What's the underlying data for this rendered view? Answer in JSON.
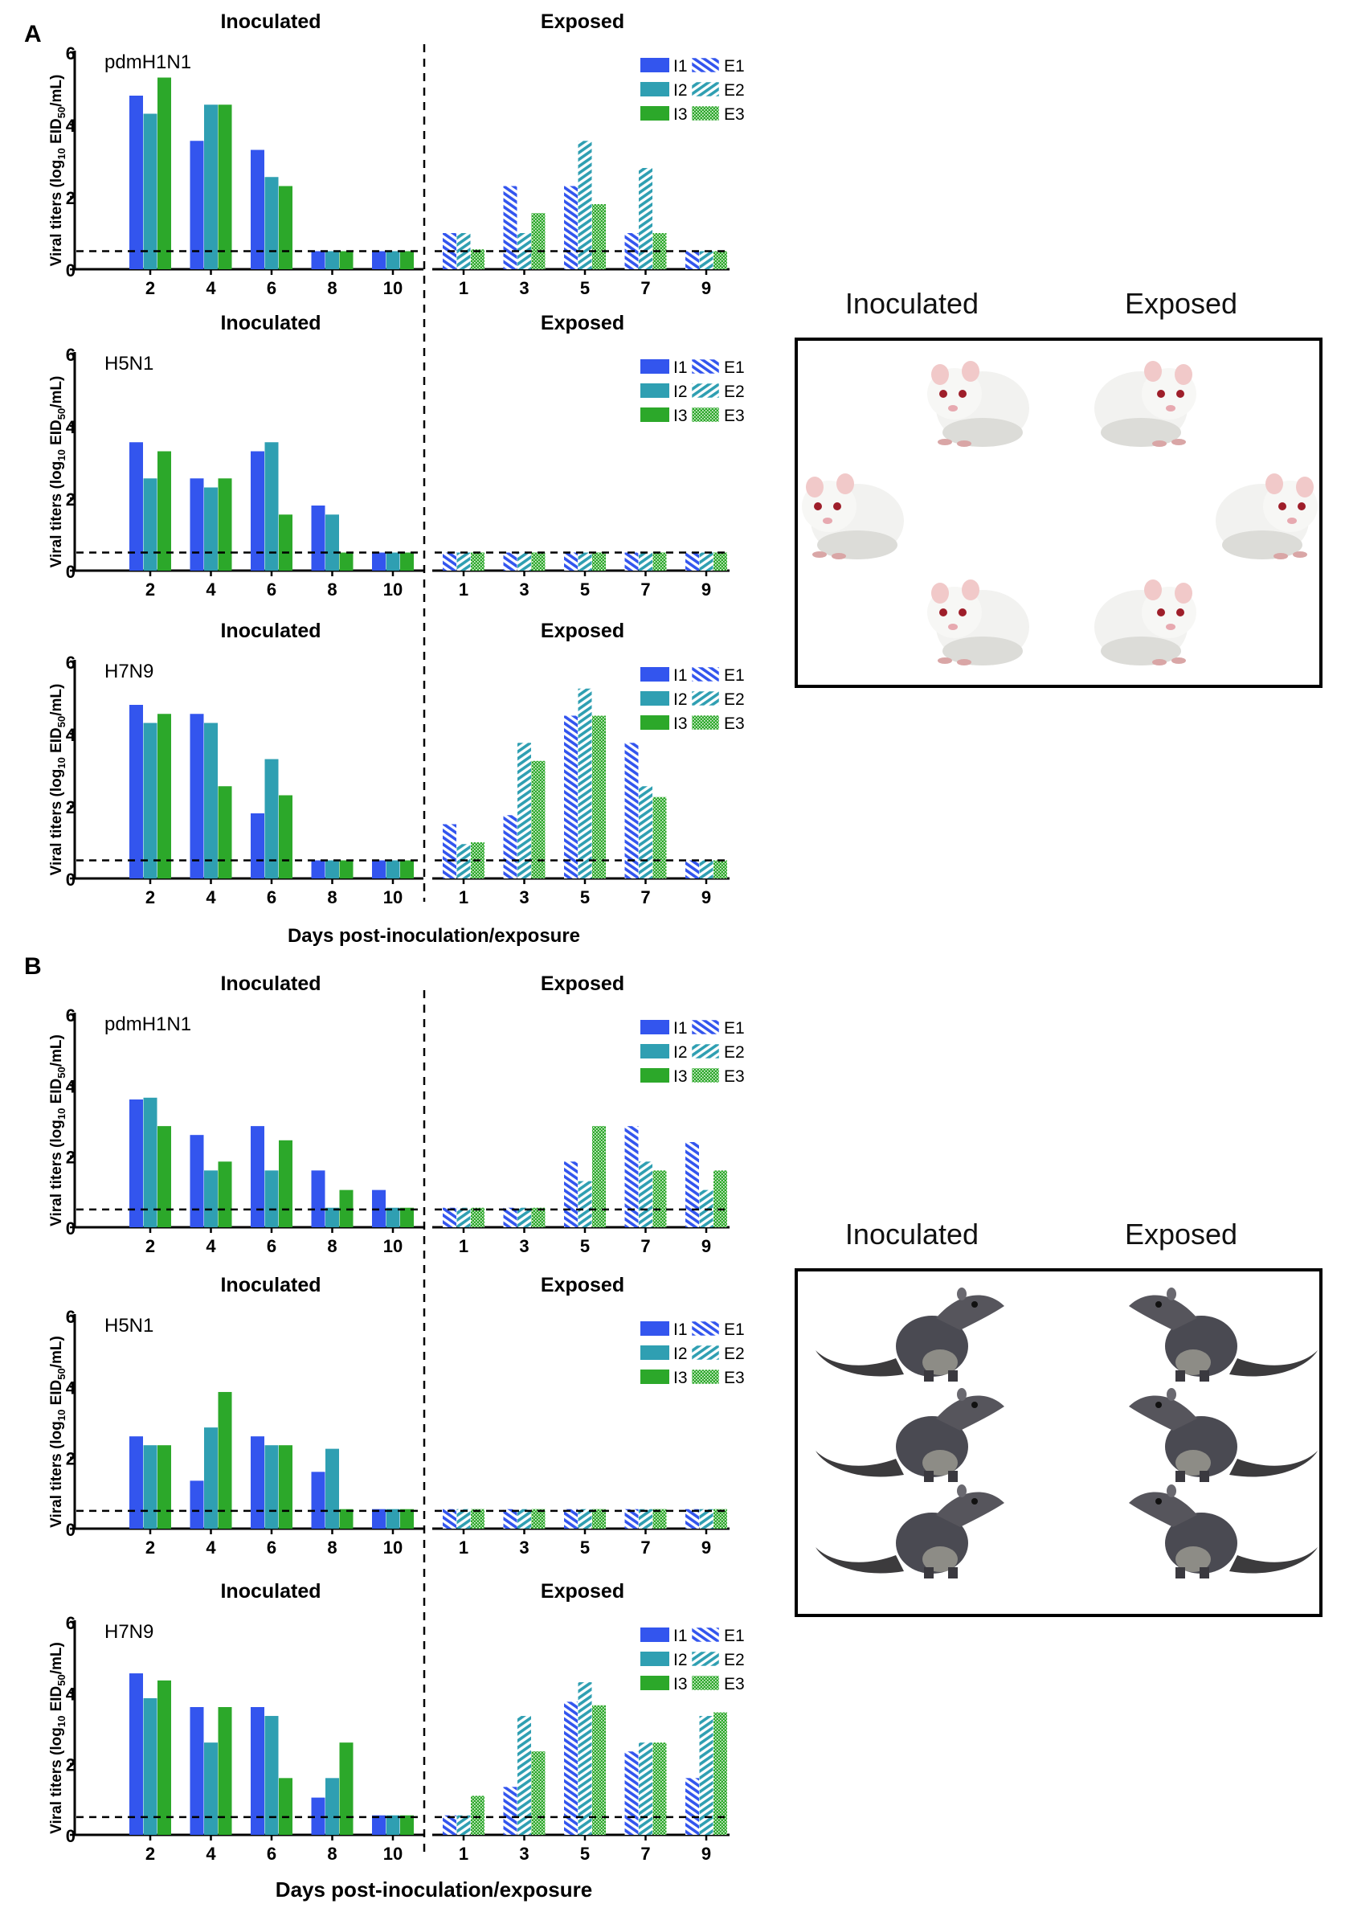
{
  "figure": {
    "panel_a_letter": "A",
    "panel_b_letter": "B",
    "xlabel": "Days post-inoculation/exposure",
    "ylabel_main": "Viral titers (log",
    "ylabel_sub1": "10",
    "ylabel_mid": " EID",
    "ylabel_sub2": "50",
    "ylabel_end": "/mL)",
    "group_inoculated": "Inoculated",
    "group_exposed": "Exposed",
    "legend_inoculated": [
      "I1",
      "I2",
      "I3"
    ],
    "legend_exposed": [
      "E1",
      "E2",
      "E3"
    ],
    "limit_of_detection": 0.5,
    "ylim": [
      0,
      6
    ],
    "yticks": [
      "0",
      "2",
      "4",
      "6"
    ],
    "colors": {
      "series1": "#3355ee",
      "series2": "#2f9fb2",
      "series3": "#2ca82a",
      "line": "#000000"
    }
  },
  "illustrations": {
    "a": {
      "title_left": "Inoculated",
      "title_right": "Exposed",
      "animal": "guinea-pig",
      "left_count": 3,
      "right_count": 3
    },
    "b": {
      "title_left": "Inoculated",
      "title_right": "Exposed",
      "animal": "tree-shrew",
      "left_count": 3,
      "right_count": 3
    }
  },
  "chart_data": [
    {
      "type": "bar",
      "panel": "A",
      "virus": "pdmH1N1",
      "inoculated": {
        "title": "Inoculated",
        "days": [
          "2",
          "4",
          "6",
          "8",
          "10"
        ],
        "series": [
          {
            "name": "I1",
            "values": [
              4.8,
              3.55,
              3.3,
              0.5,
              0.5
            ]
          },
          {
            "name": "I2",
            "values": [
              4.3,
              4.55,
              2.55,
              0.5,
              0.5
            ]
          },
          {
            "name": "I3",
            "values": [
              5.3,
              4.55,
              2.3,
              0.5,
              0.5
            ]
          }
        ]
      },
      "exposed": {
        "title": "Exposed",
        "days": [
          "1",
          "3",
          "5",
          "7",
          "9"
        ],
        "series": [
          {
            "name": "E1",
            "values": [
              1.0,
              2.3,
              2.3,
              1.0,
              0.5
            ]
          },
          {
            "name": "E2",
            "values": [
              1.0,
              1.0,
              3.55,
              2.8,
              0.5
            ]
          },
          {
            "name": "E3",
            "values": [
              0.55,
              1.55,
              1.8,
              1.0,
              0.5
            ]
          }
        ]
      }
    },
    {
      "type": "bar",
      "panel": "A",
      "virus": "H5N1",
      "inoculated": {
        "title": "Inoculated",
        "days": [
          "2",
          "4",
          "6",
          "8",
          "10"
        ],
        "series": [
          {
            "name": "I1",
            "values": [
              3.55,
              2.55,
              3.3,
              1.8,
              0.5
            ]
          },
          {
            "name": "I2",
            "values": [
              2.55,
              2.3,
              3.55,
              1.55,
              0.5
            ]
          },
          {
            "name": "I3",
            "values": [
              3.3,
              2.55,
              1.55,
              0.5,
              0.5
            ]
          }
        ]
      },
      "exposed": {
        "title": "Exposed",
        "days": [
          "1",
          "3",
          "5",
          "7",
          "9"
        ],
        "series": [
          {
            "name": "E1",
            "values": [
              0.5,
              0.5,
              0.5,
              0.5,
              0.5
            ]
          },
          {
            "name": "E2",
            "values": [
              0.5,
              0.5,
              0.5,
              0.5,
              0.5
            ]
          },
          {
            "name": "E3",
            "values": [
              0.5,
              0.5,
              0.5,
              0.5,
              0.5
            ]
          }
        ]
      }
    },
    {
      "type": "bar",
      "panel": "A",
      "virus": "H7N9",
      "inoculated": {
        "title": "Inoculated",
        "days": [
          "2",
          "4",
          "6",
          "8",
          "10"
        ],
        "series": [
          {
            "name": "I1",
            "values": [
              4.8,
              4.55,
              1.8,
              0.5,
              0.5
            ]
          },
          {
            "name": "I2",
            "values": [
              4.3,
              4.3,
              3.3,
              0.5,
              0.5
            ]
          },
          {
            "name": "I3",
            "values": [
              4.55,
              2.55,
              2.3,
              0.5,
              0.5
            ]
          }
        ]
      },
      "exposed": {
        "title": "Exposed",
        "days": [
          "1",
          "3",
          "5",
          "7",
          "9"
        ],
        "series": [
          {
            "name": "E1",
            "values": [
              1.5,
              1.75,
              4.5,
              3.75,
              0.5
            ]
          },
          {
            "name": "E2",
            "values": [
              0.95,
              3.75,
              5.25,
              2.55,
              0.5
            ]
          },
          {
            "name": "E3",
            "values": [
              1.0,
              3.25,
              4.5,
              2.25,
              0.5
            ]
          }
        ]
      }
    },
    {
      "type": "bar",
      "panel": "B",
      "virus": "pdmH1N1",
      "inoculated": {
        "title": "Inoculated",
        "days": [
          "2",
          "4",
          "6",
          "8",
          "10"
        ],
        "series": [
          {
            "name": "I1",
            "values": [
              3.6,
              2.6,
              2.85,
              1.6,
              1.05
            ]
          },
          {
            "name": "I2",
            "values": [
              3.65,
              1.6,
              1.6,
              0.55,
              0.55
            ]
          },
          {
            "name": "I3",
            "values": [
              2.85,
              1.85,
              2.45,
              1.05,
              0.55
            ]
          }
        ]
      },
      "exposed": {
        "title": "Exposed",
        "days": [
          "1",
          "3",
          "5",
          "7",
          "9"
        ],
        "series": [
          {
            "name": "E1",
            "values": [
              0.55,
              0.55,
              1.85,
              2.85,
              2.4
            ]
          },
          {
            "name": "E2",
            "values": [
              0.55,
              0.55,
              1.3,
              1.85,
              1.05
            ]
          },
          {
            "name": "E3",
            "values": [
              0.55,
              0.55,
              2.85,
              1.6,
              1.6
            ]
          }
        ]
      }
    },
    {
      "type": "bar",
      "panel": "B",
      "virus": "H5N1",
      "inoculated": {
        "title": "Inoculated",
        "days": [
          "2",
          "4",
          "6",
          "8",
          "10"
        ],
        "series": [
          {
            "name": "I1",
            "values": [
              2.6,
              1.35,
              2.6,
              1.6,
              0.55
            ]
          },
          {
            "name": "I2",
            "values": [
              2.35,
              2.85,
              2.35,
              2.25,
              0.55
            ]
          },
          {
            "name": "I3",
            "values": [
              2.35,
              3.85,
              2.35,
              0.55,
              0.55
            ]
          }
        ]
      },
      "exposed": {
        "title": "Exposed",
        "days": [
          "1",
          "3",
          "5",
          "7",
          "9"
        ],
        "series": [
          {
            "name": "E1",
            "values": [
              0.55,
              0.55,
              0.55,
              0.55,
              0.55
            ]
          },
          {
            "name": "E2",
            "values": [
              0.55,
              0.55,
              0.55,
              0.55,
              0.55
            ]
          },
          {
            "name": "E3",
            "values": [
              0.55,
              0.55,
              0.55,
              0.55,
              0.55
            ]
          }
        ]
      }
    },
    {
      "type": "bar",
      "panel": "B",
      "virus": "H7N9",
      "inoculated": {
        "title": "Inoculated",
        "days": [
          "2",
          "4",
          "6",
          "8",
          "10"
        ],
        "series": [
          {
            "name": "I1",
            "values": [
              4.55,
              3.6,
              3.6,
              1.05,
              0.55
            ]
          },
          {
            "name": "I2",
            "values": [
              3.85,
              2.6,
              3.35,
              1.6,
              0.55
            ]
          },
          {
            "name": "I3",
            "values": [
              4.35,
              3.6,
              1.6,
              2.6,
              0.55
            ]
          }
        ]
      },
      "exposed": {
        "title": "Exposed",
        "days": [
          "1",
          "3",
          "5",
          "7",
          "9"
        ],
        "series": [
          {
            "name": "E1",
            "values": [
              0.55,
              1.35,
              3.75,
              2.35,
              1.6
            ]
          },
          {
            "name": "E2",
            "values": [
              0.55,
              3.35,
              4.3,
              2.6,
              3.35
            ]
          },
          {
            "name": "E3",
            "values": [
              1.1,
              2.35,
              3.65,
              2.6,
              3.45
            ]
          }
        ]
      }
    }
  ]
}
